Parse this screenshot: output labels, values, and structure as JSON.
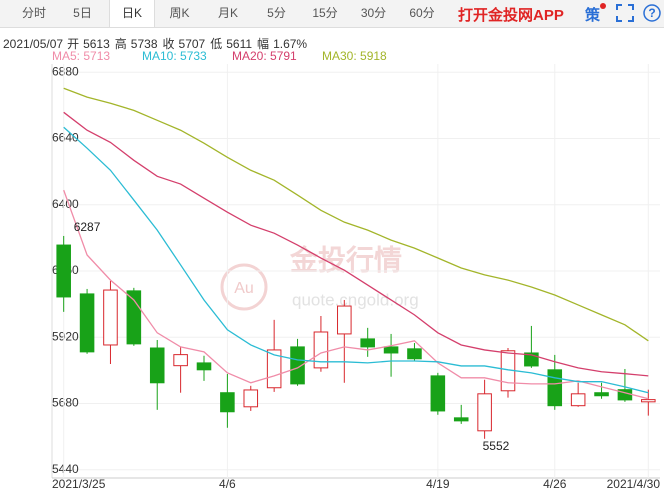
{
  "header": {
    "tabs": [
      {
        "label": "分时"
      },
      {
        "label": "5日"
      },
      {
        "label": "日K",
        "active": true
      },
      {
        "label": "周K"
      },
      {
        "label": "月K"
      },
      {
        "label": "5分"
      },
      {
        "label": "15分"
      },
      {
        "label": "30分"
      },
      {
        "label": "60分"
      }
    ],
    "app_link": "打开金投网APP",
    "strategy_icon": "策"
  },
  "info": {
    "date": "2021/05/07",
    "fields": [
      {
        "label": "开",
        "value": 5613
      },
      {
        "label": "高",
        "value": 5738
      },
      {
        "label": "收",
        "value": 5707
      },
      {
        "label": "低",
        "value": 5611
      },
      {
        "label": "幅",
        "value": 1.67,
        "value_label": "1.67%"
      }
    ]
  },
  "watermark": {
    "title": "金投行情",
    "logo": "Au",
    "url": "quote.cngold.org"
  },
  "chart_data": {
    "type": "candlestick",
    "categories": [
      "2021/3/25",
      null,
      null,
      null,
      null,
      null,
      null,
      "4/6",
      null,
      null,
      null,
      null,
      null,
      null,
      null,
      null,
      "4/19",
      null,
      null,
      null,
      null,
      "4/26",
      null,
      null,
      null,
      "2021/4/30"
    ],
    "open": [
      6254,
      6077,
      5892,
      6088,
      5881,
      5817,
      5827,
      5719,
      5668,
      5737,
      5885,
      5809,
      5932,
      5914,
      5885,
      5878,
      5780,
      5628,
      5581,
      5726,
      5863,
      5802,
      5672,
      5719,
      5730,
      5686
    ],
    "high": [
      6287,
      6095,
      6124,
      6099,
      5910,
      5885,
      5853,
      5787,
      5744,
      5983,
      5914,
      5997,
      6055,
      5954,
      5932,
      5899,
      5791,
      5675,
      5766,
      5881,
      5961,
      5856,
      5755,
      5755,
      5805,
      5730
    ],
    "low": [
      6012,
      5860,
      5823,
      5889,
      5657,
      5719,
      5762,
      5592,
      5653,
      5722,
      5744,
      5795,
      5755,
      5849,
      5777,
      5834,
      5639,
      5606,
      5552,
      5701,
      5809,
      5657,
      5668,
      5697,
      5686,
      5636
    ],
    "close": [
      6066,
      5867,
      6091,
      5896,
      5755,
      5857,
      5802,
      5650,
      5729,
      5874,
      5751,
      5939,
      6033,
      5885,
      5863,
      5842,
      5653,
      5617,
      5715,
      5871,
      5816,
      5672,
      5715,
      5708,
      5693,
      5694
    ],
    "up_color": "#d8262c",
    "down_color": "#18a218",
    "annotations": [
      {
        "text": "6287"
      },
      {
        "text": "5552"
      }
    ],
    "series": [
      {
        "name": "MA5: 5713",
        "color": "#f08ca8",
        "values": [
          6453,
          6218,
          6127,
          6055,
          5936,
          5885,
          5867,
          5791,
          5755,
          5780,
          5809,
          5863,
          5885,
          5874,
          5889,
          5907,
          5827,
          5773,
          5773,
          5755,
          5751,
          5751,
          5762,
          5740,
          5719,
          5697
        ]
      },
      {
        "name": "MA10: 5733",
        "color": "#2bbcd4",
        "values": [
          6681,
          6605,
          6525,
          6417,
          6308,
          6182,
          6055,
          5947,
          5892,
          5856,
          5838,
          5831,
          5831,
          5827,
          5834,
          5834,
          5831,
          5816,
          5816,
          5802,
          5791,
          5773,
          5759,
          5759,
          5740,
          5719
        ]
      },
      {
        "name": "MA20: 5791",
        "color": "#d43f6c",
        "values": [
          6735,
          6670,
          6626,
          6561,
          6503,
          6475,
          6424,
          6373,
          6326,
          6297,
          6254,
          6207,
          6163,
          6109,
          6055,
          6001,
          5936,
          5892,
          5874,
          5863,
          5856,
          5831,
          5809,
          5795,
          5788,
          5780
        ]
      },
      {
        "name": "MA30: 5918",
        "color": "#a3b52a",
        "values": [
          6822,
          6790,
          6768,
          6742,
          6706,
          6670,
          6623,
          6572,
          6525,
          6489,
          6435,
          6380,
          6337,
          6308,
          6272,
          6243,
          6207,
          6171,
          6146,
          6127,
          6102,
          6073,
          6037,
          6001,
          5965,
          5907
        ]
      }
    ],
    "ylim": [
      5410,
      6910
    ],
    "yticks": [
      5440,
      5680,
      5920,
      6160,
      6400,
      6640,
      6880
    ],
    "grid": true
  }
}
